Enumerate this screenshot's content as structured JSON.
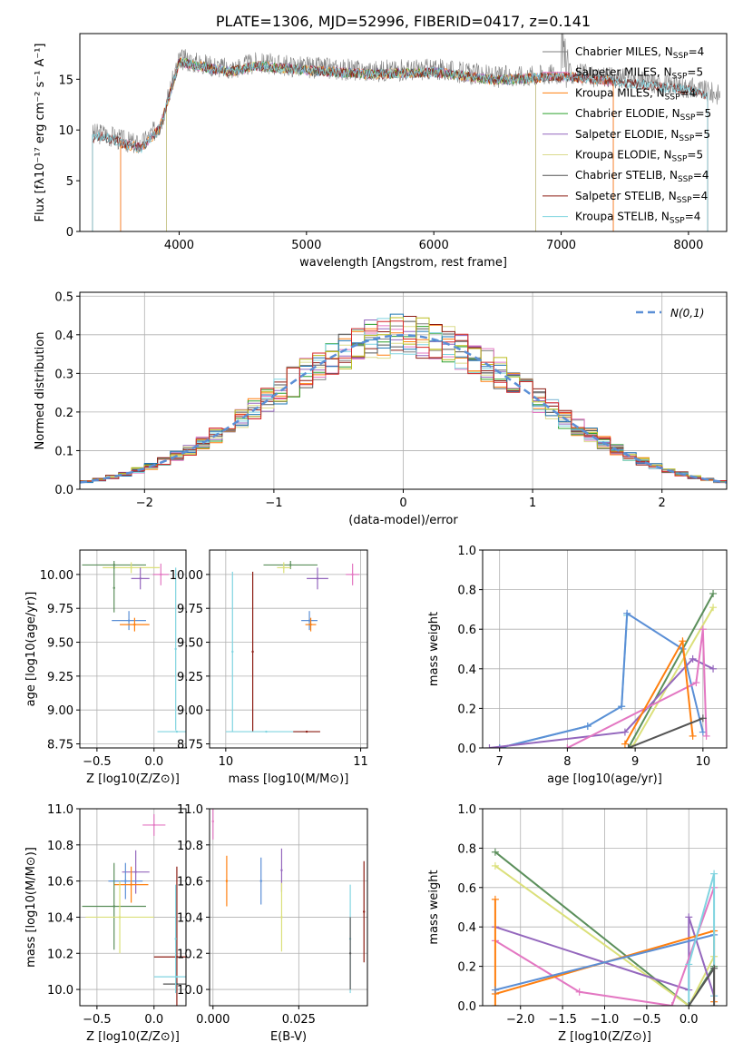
{
  "chart_data": [
    {
      "id": "spectrum",
      "type": "line",
      "title": "PLATE=1306, MJD=52996, FIBERID=0417, z=0.141",
      "xlabel": "wavelength [Angstrom, rest frame]",
      "ylabel": "Flux [fλ10⁻¹⁷ erg cm⁻² s⁻¹ A⁻¹]",
      "xlim": [
        3220,
        8300
      ],
      "ylim": [
        0,
        19.5
      ],
      "xticks": [
        4000,
        5000,
        6000,
        7000,
        8000
      ],
      "yticks": [
        0,
        5,
        10,
        15
      ],
      "grid": false,
      "legend_position": "right",
      "data_spectrum_anchors": [
        [
          3300,
          9.5
        ],
        [
          3400,
          9.7
        ],
        [
          3550,
          9.0
        ],
        [
          3700,
          8.5
        ],
        [
          3850,
          10.5
        ],
        [
          4000,
          17.0
        ],
        [
          4200,
          16.5
        ],
        [
          4400,
          16.0
        ],
        [
          4600,
          16.6
        ],
        [
          5000,
          16.2
        ],
        [
          5500,
          15.8
        ],
        [
          6000,
          16.0
        ],
        [
          6500,
          15.2
        ],
        [
          7000,
          15.6
        ],
        [
          7500,
          15.0
        ],
        [
          8000,
          14.2
        ],
        [
          8250,
          13.5
        ]
      ],
      "series": [
        {
          "name": "Chabrier MILES, N_SSP=4",
          "color": "#7f7f7f",
          "x": [
            3540,
            7410
          ],
          "y": [
            14.6,
            14.0
          ]
        },
        {
          "name": "Salpeter MILES, N_SSP=5",
          "color": "#e377c2",
          "x": [
            3540,
            7410
          ],
          "y": [
            14.7,
            14.1
          ]
        },
        {
          "name": "Kroupa MILES, N_SSP=4",
          "color": "#ff7f0e",
          "x": [
            3540,
            7410
          ],
          "y": [
            14.5,
            13.9
          ]
        },
        {
          "name": "Chabrier ELODIE, N_SSP=5",
          "color": "#2ca02c",
          "x": [
            3900,
            6800
          ],
          "y": [
            15.8,
            15.0
          ]
        },
        {
          "name": "Salpeter ELODIE, N_SSP=5",
          "color": "#9467bd",
          "x": [
            3900,
            6800
          ],
          "y": [
            15.9,
            15.1
          ]
        },
        {
          "name": "Kroupa ELODIE, N_SSP=5",
          "color": "#dbdb8d",
          "x": [
            3900,
            6800
          ],
          "y": [
            15.7,
            14.9
          ]
        },
        {
          "name": "Chabrier STELIB, N_SSP=4",
          "color": "#555555",
          "x": [
            3320,
            8150
          ],
          "y": [
            14.8,
            13.6
          ]
        },
        {
          "name": "Salpeter STELIB, N_SSP=4",
          "color": "#8c1c13",
          "x": [
            3320,
            8150
          ],
          "y": [
            14.9,
            13.7
          ]
        },
        {
          "name": "Kroupa STELIB, N_SSP=4",
          "color": "#80d4e0",
          "x": [
            3320,
            8150
          ],
          "y": [
            14.8,
            13.6
          ]
        }
      ]
    },
    {
      "id": "residuals",
      "type": "line",
      "xlabel": "(data-model)/error",
      "ylabel": "Normed distribution",
      "xlim": [
        -2.5,
        2.5
      ],
      "ylim": [
        0,
        0.51
      ],
      "xticks": [
        -2,
        -1,
        0,
        1,
        2
      ],
      "yticks": [
        0.0,
        0.1,
        0.2,
        0.3,
        0.4,
        0.5
      ],
      "grid": true,
      "legend_position": "top-right",
      "reference": {
        "name": "N(0,1)",
        "color": "#5b8fd6"
      },
      "bin_width": 0.1,
      "bin_start": -2.5,
      "series_colors": [
        "#7f7f7f",
        "#e377c2",
        "#ff7f0e",
        "#2ca02c",
        "#9467bd",
        "#dbdb8d",
        "#555555",
        "#8c1c13",
        "#80d4e0",
        "#1f77b4",
        "#bcbd22",
        "#d62728"
      ],
      "series_seeds": [
        1,
        2,
        3,
        4,
        5,
        6,
        7,
        8,
        9,
        10,
        11,
        12
      ]
    },
    {
      "id": "age_vs_z",
      "type": "scatter",
      "xlabel": "Z [log10(Z/Z⊙)]",
      "ylabel": "age  [log10(age/yr)]",
      "xlim": [
        -0.65,
        0.28
      ],
      "ylim": [
        8.72,
        10.18
      ],
      "xticks": [
        -0.5,
        0.0
      ],
      "yticks": [
        8.75,
        9.0,
        9.25,
        9.5,
        9.75,
        10.0
      ],
      "grid": true,
      "points": [
        {
          "x": -0.35,
          "y": 10.07,
          "xerr": 0.28,
          "yerr": 0.03,
          "color": "#5b8f5b"
        },
        {
          "x": -0.2,
          "y": 10.05,
          "xerr": 0.25,
          "yerr": 0.04,
          "color": "#dbe07a"
        },
        {
          "x": -0.12,
          "y": 9.97,
          "xerr": 0.08,
          "yerr": 0.08,
          "color": "#9467bd"
        },
        {
          "x": 0.06,
          "y": 10.0,
          "xerr": 0.07,
          "yerr": 0.08,
          "color": "#e377c2"
        },
        {
          "x": -0.22,
          "y": 9.66,
          "xerr": 0.15,
          "yerr": 0.07,
          "color": "#5b8fd6"
        },
        {
          "x": -0.17,
          "y": 9.63,
          "xerr": 0.13,
          "yerr": 0.05,
          "color": "#ff7f0e"
        },
        {
          "x": -0.35,
          "y": 9.9,
          "xerr": 0.0,
          "yerr": 0.18,
          "color": "#5b8f5b"
        },
        {
          "x": 0.2,
          "y": 8.84,
          "xerr": 0.17,
          "yerr": 0.0,
          "color": "#80d4e0"
        },
        {
          "x": 0.19,
          "y": 9.45,
          "xerr": 0.0,
          "yerr": 0.6,
          "color": "#80d4e0"
        }
      ]
    },
    {
      "id": "age_vs_mass",
      "type": "scatter",
      "xlabel": "mass [log10(M/M⊙)]",
      "ylabel": "",
      "xlim": [
        9.88,
        11.05
      ],
      "ylim": [
        8.72,
        10.18
      ],
      "xticks": [
        10,
        11
      ],
      "yticks": [
        8.75,
        9.0,
        9.25,
        9.5,
        9.75,
        10.0
      ],
      "grid": true,
      "points": [
        {
          "x": 10.48,
          "y": 10.07,
          "xerr": 0.2,
          "yerr": 0.03,
          "color": "#5b8f5b"
        },
        {
          "x": 10.43,
          "y": 10.05,
          "xerr": 0.05,
          "yerr": 0.04,
          "color": "#dbe07a"
        },
        {
          "x": 10.68,
          "y": 9.97,
          "xerr": 0.08,
          "yerr": 0.08,
          "color": "#9467bd"
        },
        {
          "x": 10.94,
          "y": 10.0,
          "xerr": 0.05,
          "yerr": 0.08,
          "color": "#e377c2"
        },
        {
          "x": 10.62,
          "y": 9.66,
          "xerr": 0.06,
          "yerr": 0.07,
          "color": "#5b8fd6"
        },
        {
          "x": 10.63,
          "y": 9.63,
          "xerr": 0.04,
          "yerr": 0.05,
          "color": "#ff7f0e"
        },
        {
          "x": 10.2,
          "y": 9.43,
          "xerr": 0.0,
          "yerr": 0.59,
          "color": "#8c1c13"
        },
        {
          "x": 10.3,
          "y": 8.84,
          "xerr": 0.3,
          "yerr": 0.0,
          "color": "#80d4e0"
        },
        {
          "x": 10.05,
          "y": 9.43,
          "xerr": 0.0,
          "yerr": 0.59,
          "color": "#80d4e0"
        },
        {
          "x": 10.6,
          "y": 8.84,
          "xerr": 0.1,
          "yerr": 0.0,
          "color": "#8c1c13"
        }
      ]
    },
    {
      "id": "weight_vs_age",
      "type": "line",
      "xlabel": "age  [log10(age/yr)]",
      "ylabel": "mass weight",
      "xlim": [
        6.75,
        10.35
      ],
      "ylim": [
        0.0,
        1.0
      ],
      "xticks": [
        7,
        8,
        9,
        10
      ],
      "yticks": [
        0.0,
        0.2,
        0.4,
        0.6,
        0.8,
        1.0
      ],
      "grid": true,
      "series": [
        {
          "color": "#80d4e0",
          "x": [
            7.0,
            8.3,
            8.8,
            8.88
          ],
          "y": [
            0.0,
            0.11,
            0.21,
            0.67
          ]
        },
        {
          "color": "#5b8fd6",
          "x": [
            7.0,
            8.3,
            8.8,
            8.88,
            9.7,
            10.0
          ],
          "y": [
            0.0,
            0.11,
            0.21,
            0.68,
            0.5,
            0.08
          ]
        },
        {
          "color": "#5b8f5b",
          "x": [
            8.9,
            10.15
          ],
          "y": [
            0.0,
            0.78
          ]
        },
        {
          "color": "#dbe07a",
          "x": [
            8.95,
            10.15
          ],
          "y": [
            0.0,
            0.71
          ]
        },
        {
          "color": "#9467bd",
          "x": [
            6.85,
            8.85,
            9.85,
            10.15
          ],
          "y": [
            0.0,
            0.08,
            0.45,
            0.4
          ]
        },
        {
          "color": "#e377c2",
          "x": [
            8.0,
            9.9,
            10.0,
            10.05
          ],
          "y": [
            0.0,
            0.33,
            0.6,
            0.06
          ]
        },
        {
          "color": "#ff7f0e",
          "x": [
            8.85,
            9.7,
            9.85
          ],
          "y": [
            0.02,
            0.54,
            0.06
          ]
        },
        {
          "color": "#555555",
          "x": [
            8.9,
            10.0
          ],
          "y": [
            0.0,
            0.15
          ]
        }
      ]
    },
    {
      "id": "mass_vs_z",
      "type": "scatter",
      "xlabel": "Z [log10(Z/Z⊙)]",
      "ylabel": "mass [log10(M/M⊙)]",
      "xlim": [
        -0.65,
        0.28
      ],
      "ylim": [
        9.91,
        11.0
      ],
      "xticks": [
        -0.5,
        0.0
      ],
      "yticks": [
        10.0,
        10.2,
        10.4,
        10.6,
        10.8,
        11.0
      ],
      "grid": true,
      "points": [
        {
          "x": 0.0,
          "y": 10.91,
          "xerr": 0.1,
          "yerr": 0.06,
          "color": "#e377c2"
        },
        {
          "x": -0.16,
          "y": 10.65,
          "xerr": 0.12,
          "yerr": 0.12,
          "color": "#9467bd"
        },
        {
          "x": -0.25,
          "y": 10.6,
          "xerr": 0.15,
          "yerr": 0.1,
          "color": "#5b8fd6"
        },
        {
          "x": -0.2,
          "y": 10.58,
          "xerr": 0.15,
          "yerr": 0.1,
          "color": "#ff7f0e"
        },
        {
          "x": -0.35,
          "y": 10.46,
          "xerr": 0.28,
          "yerr": 0.24,
          "color": "#5b8f5b"
        },
        {
          "x": -0.3,
          "y": 10.4,
          "xerr": 0.3,
          "yerr": 0.2,
          "color": "#dbe07a"
        },
        {
          "x": 0.2,
          "y": 10.18,
          "xerr": 0.2,
          "yerr": 0.5,
          "color": "#8c1c13"
        },
        {
          "x": 0.2,
          "y": 10.07,
          "xerr": 0.2,
          "yerr": 0.0,
          "color": "#80d4e0"
        },
        {
          "x": 0.2,
          "y": 10.03,
          "xerr": 0.12,
          "yerr": 0.0,
          "color": "#555555"
        },
        {
          "x": 0.19,
          "y": 10.28,
          "xerr": 0.0,
          "yerr": 0.3,
          "color": "#80d4e0"
        }
      ]
    },
    {
      "id": "mass_vs_ebv",
      "type": "scatter",
      "xlabel": "E(B-V)",
      "ylabel": "",
      "xlim": [
        -0.001,
        0.045
      ],
      "ylim": [
        9.91,
        11.0
      ],
      "xticks": [
        0.0,
        0.025
      ],
      "yticks": [
        10.0,
        10.2,
        10.4,
        10.6,
        10.8,
        11.0
      ],
      "grid": true,
      "points": [
        {
          "x": 0.0,
          "y": 10.93,
          "xerr": 0.0,
          "yerr": 0.1,
          "color": "#e377c2"
        },
        {
          "x": 0.004,
          "y": 10.6,
          "xerr": 0.0,
          "yerr": 0.14,
          "color": "#ff7f0e"
        },
        {
          "x": 0.014,
          "y": 10.6,
          "xerr": 0.0,
          "yerr": 0.13,
          "color": "#5b8fd6"
        },
        {
          "x": 0.02,
          "y": 10.66,
          "xerr": 0.0,
          "yerr": 0.12,
          "color": "#9467bd"
        },
        {
          "x": 0.02,
          "y": 10.4,
          "xerr": 0.0,
          "yerr": 0.19,
          "color": "#dbe07a"
        },
        {
          "x": 0.04,
          "y": 10.28,
          "xerr": 0.0,
          "yerr": 0.3,
          "color": "#80d4e0"
        },
        {
          "x": 0.04,
          "y": 10.2,
          "xerr": 0.0,
          "yerr": 0.2,
          "color": "#555555"
        },
        {
          "x": 0.044,
          "y": 10.43,
          "xerr": 0.0,
          "yerr": 0.28,
          "color": "#8c1c13"
        }
      ]
    },
    {
      "id": "weight_vs_z",
      "type": "line",
      "xlabel": "Z [log10(Z/Z⊙)]",
      "ylabel": "mass weight",
      "xlim": [
        -2.45,
        0.45
      ],
      "ylim": [
        0.0,
        1.0
      ],
      "xticks": [
        -2.0,
        -1.5,
        -1.0,
        -0.5,
        0.0
      ],
      "yticks": [
        0.0,
        0.2,
        0.4,
        0.6,
        0.8,
        1.0
      ],
      "grid": true,
      "series": [
        {
          "color": "#5b8f5b",
          "x": [
            -2.3,
            0.0,
            0.3
          ],
          "y": [
            0.78,
            0.0,
            0.2
          ]
        },
        {
          "color": "#dbe07a",
          "x": [
            -2.3,
            0.0,
            0.3
          ],
          "y": [
            0.71,
            0.0,
            0.25
          ]
        },
        {
          "color": "#9467bd",
          "x": [
            -2.3,
            0.0,
            0.0,
            0.3
          ],
          "y": [
            0.4,
            0.08,
            0.45,
            0.05
          ]
        },
        {
          "color": "#e377c2",
          "x": [
            -2.3,
            -1.3,
            -0.2,
            0.3
          ],
          "y": [
            0.33,
            0.07,
            0.0,
            0.6
          ]
        },
        {
          "color": "#ff7f0e",
          "x": [
            -2.3,
            -2.3,
            -2.3,
            0.3,
            0.3
          ],
          "y": [
            0.54,
            0.0,
            0.06,
            0.38,
            0.02
          ]
        },
        {
          "color": "#5b8fd6",
          "x": [
            -2.3,
            0.3
          ],
          "y": [
            0.08,
            0.36
          ]
        },
        {
          "color": "#80d4e0",
          "x": [
            0.0,
            0.0,
            0.3,
            0.3
          ],
          "y": [
            0.0,
            0.21,
            0.67,
            0.05
          ]
        },
        {
          "color": "#555555",
          "x": [
            0.0,
            0.3,
            0.3
          ],
          "y": [
            0.0,
            0.19,
            0.0
          ]
        }
      ]
    }
  ]
}
